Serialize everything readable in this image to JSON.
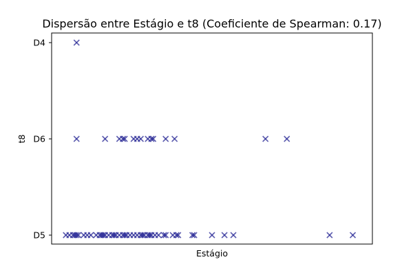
{
  "chart_data": {
    "type": "scatter",
    "title": "Dispersão entre Estágio e t8 (Coeficiente de Spearman: 0.17)",
    "xlabel": "Estágio",
    "ylabel": "t8",
    "x_ticks_shown": false,
    "y_categories": [
      "D5",
      "D6",
      "D4"
    ],
    "xlim": [
      0,
      90
    ],
    "marker": "x",
    "marker_color": "#1a1a8f",
    "grid": false,
    "points": [
      {
        "x": 7,
        "y": "D4"
      },
      {
        "x": 7,
        "y": "D6"
      },
      {
        "x": 15,
        "y": "D6"
      },
      {
        "x": 19,
        "y": "D6"
      },
      {
        "x": 20,
        "y": "D6"
      },
      {
        "x": 20.5,
        "y": "D6"
      },
      {
        "x": 23,
        "y": "D6"
      },
      {
        "x": 24,
        "y": "D6"
      },
      {
        "x": 25,
        "y": "D6"
      },
      {
        "x": 27,
        "y": "D6"
      },
      {
        "x": 28,
        "y": "D6"
      },
      {
        "x": 28.5,
        "y": "D6"
      },
      {
        "x": 32,
        "y": "D6"
      },
      {
        "x": 34.5,
        "y": "D6"
      },
      {
        "x": 60,
        "y": "D6"
      },
      {
        "x": 66,
        "y": "D6"
      },
      {
        "x": 4,
        "y": "D5"
      },
      {
        "x": 5,
        "y": "D5"
      },
      {
        "x": 6,
        "y": "D5"
      },
      {
        "x": 6.5,
        "y": "D5"
      },
      {
        "x": 7,
        "y": "D5"
      },
      {
        "x": 7.5,
        "y": "D5"
      },
      {
        "x": 9,
        "y": "D5"
      },
      {
        "x": 10,
        "y": "D5"
      },
      {
        "x": 11,
        "y": "D5"
      },
      {
        "x": 12.5,
        "y": "D5"
      },
      {
        "x": 13.5,
        "y": "D5"
      },
      {
        "x": 14,
        "y": "D5"
      },
      {
        "x": 14.5,
        "y": "D5"
      },
      {
        "x": 15,
        "y": "D5"
      },
      {
        "x": 16,
        "y": "D5"
      },
      {
        "x": 17,
        "y": "D5"
      },
      {
        "x": 17.5,
        "y": "D5"
      },
      {
        "x": 18,
        "y": "D5"
      },
      {
        "x": 19,
        "y": "D5"
      },
      {
        "x": 20,
        "y": "D5"
      },
      {
        "x": 20.5,
        "y": "D5"
      },
      {
        "x": 21,
        "y": "D5"
      },
      {
        "x": 22,
        "y": "D5"
      },
      {
        "x": 23,
        "y": "D5"
      },
      {
        "x": 24,
        "y": "D5"
      },
      {
        "x": 25,
        "y": "D5"
      },
      {
        "x": 25.5,
        "y": "D5"
      },
      {
        "x": 26,
        "y": "D5"
      },
      {
        "x": 27,
        "y": "D5"
      },
      {
        "x": 27.5,
        "y": "D5"
      },
      {
        "x": 28,
        "y": "D5"
      },
      {
        "x": 29,
        "y": "D5"
      },
      {
        "x": 30,
        "y": "D5"
      },
      {
        "x": 31.5,
        "y": "D5"
      },
      {
        "x": 32,
        "y": "D5"
      },
      {
        "x": 34,
        "y": "D5"
      },
      {
        "x": 35,
        "y": "D5"
      },
      {
        "x": 35.5,
        "y": "D5"
      },
      {
        "x": 39.5,
        "y": "D5"
      },
      {
        "x": 40,
        "y": "D5"
      },
      {
        "x": 45,
        "y": "D5"
      },
      {
        "x": 48.5,
        "y": "D5"
      },
      {
        "x": 51,
        "y": "D5"
      },
      {
        "x": 78,
        "y": "D5"
      },
      {
        "x": 84.5,
        "y": "D5"
      }
    ]
  }
}
